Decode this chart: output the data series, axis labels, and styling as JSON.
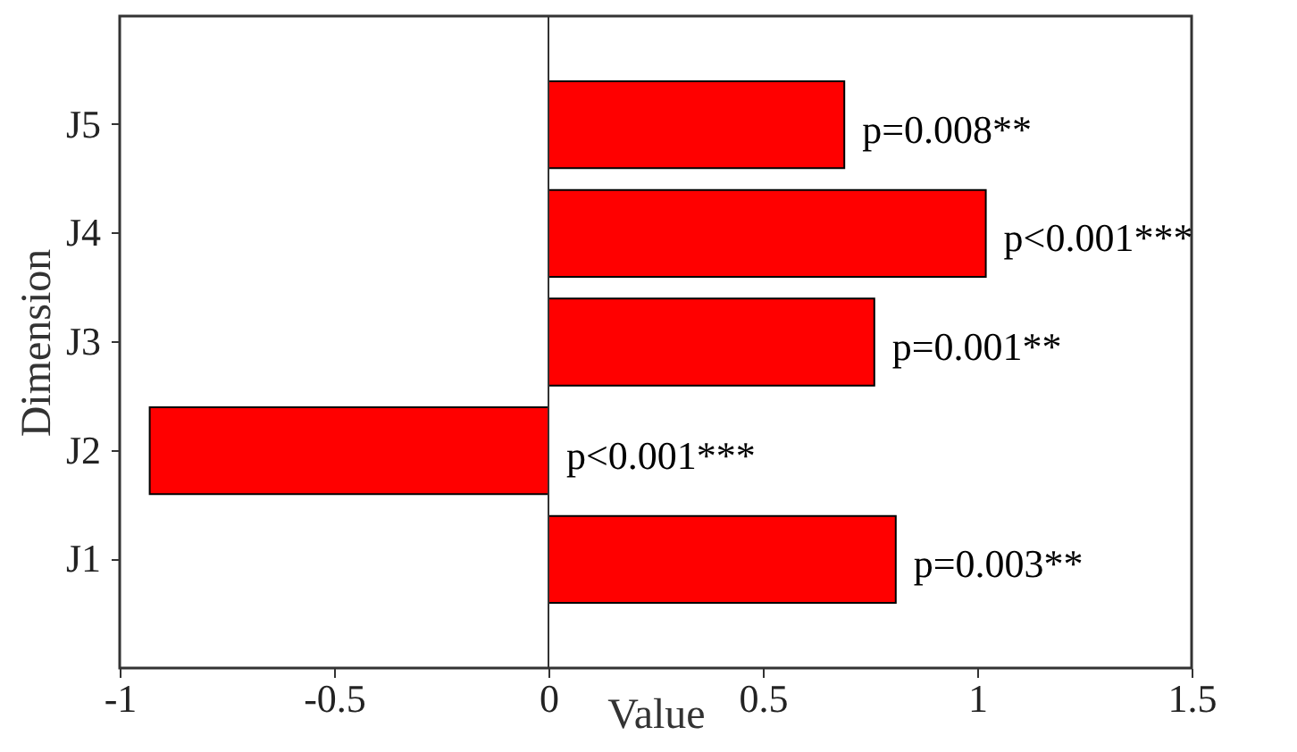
{
  "chart_data": {
    "type": "bar",
    "orientation": "horizontal",
    "xlabel": "Value",
    "ylabel": "Dimension",
    "categories": [
      "J5",
      "J4",
      "J3",
      "J2",
      "J1"
    ],
    "values": [
      0.69,
      1.02,
      0.76,
      -0.93,
      0.81
    ],
    "annotations": [
      {
        "text": "p=0.008**",
        "x": 0.69,
        "y": "J5"
      },
      {
        "text": "p<0.001***",
        "x": 1.02,
        "y": "J4"
      },
      {
        "text": "p=0.001**",
        "x": 0.76,
        "y": "J3"
      },
      {
        "text": "p<0.001***",
        "x": 0,
        "y": "J2"
      },
      {
        "text": "p=0.003**",
        "x": 0.81,
        "y": "J1"
      }
    ],
    "color": "#ff0000",
    "xlim": [
      -1,
      1.5
    ],
    "xticks": [
      -1,
      -0.5,
      0,
      0.5,
      1,
      1.5
    ],
    "ref_lines": [
      {
        "axis": "x",
        "value": 0,
        "color": "#333333"
      }
    ]
  }
}
